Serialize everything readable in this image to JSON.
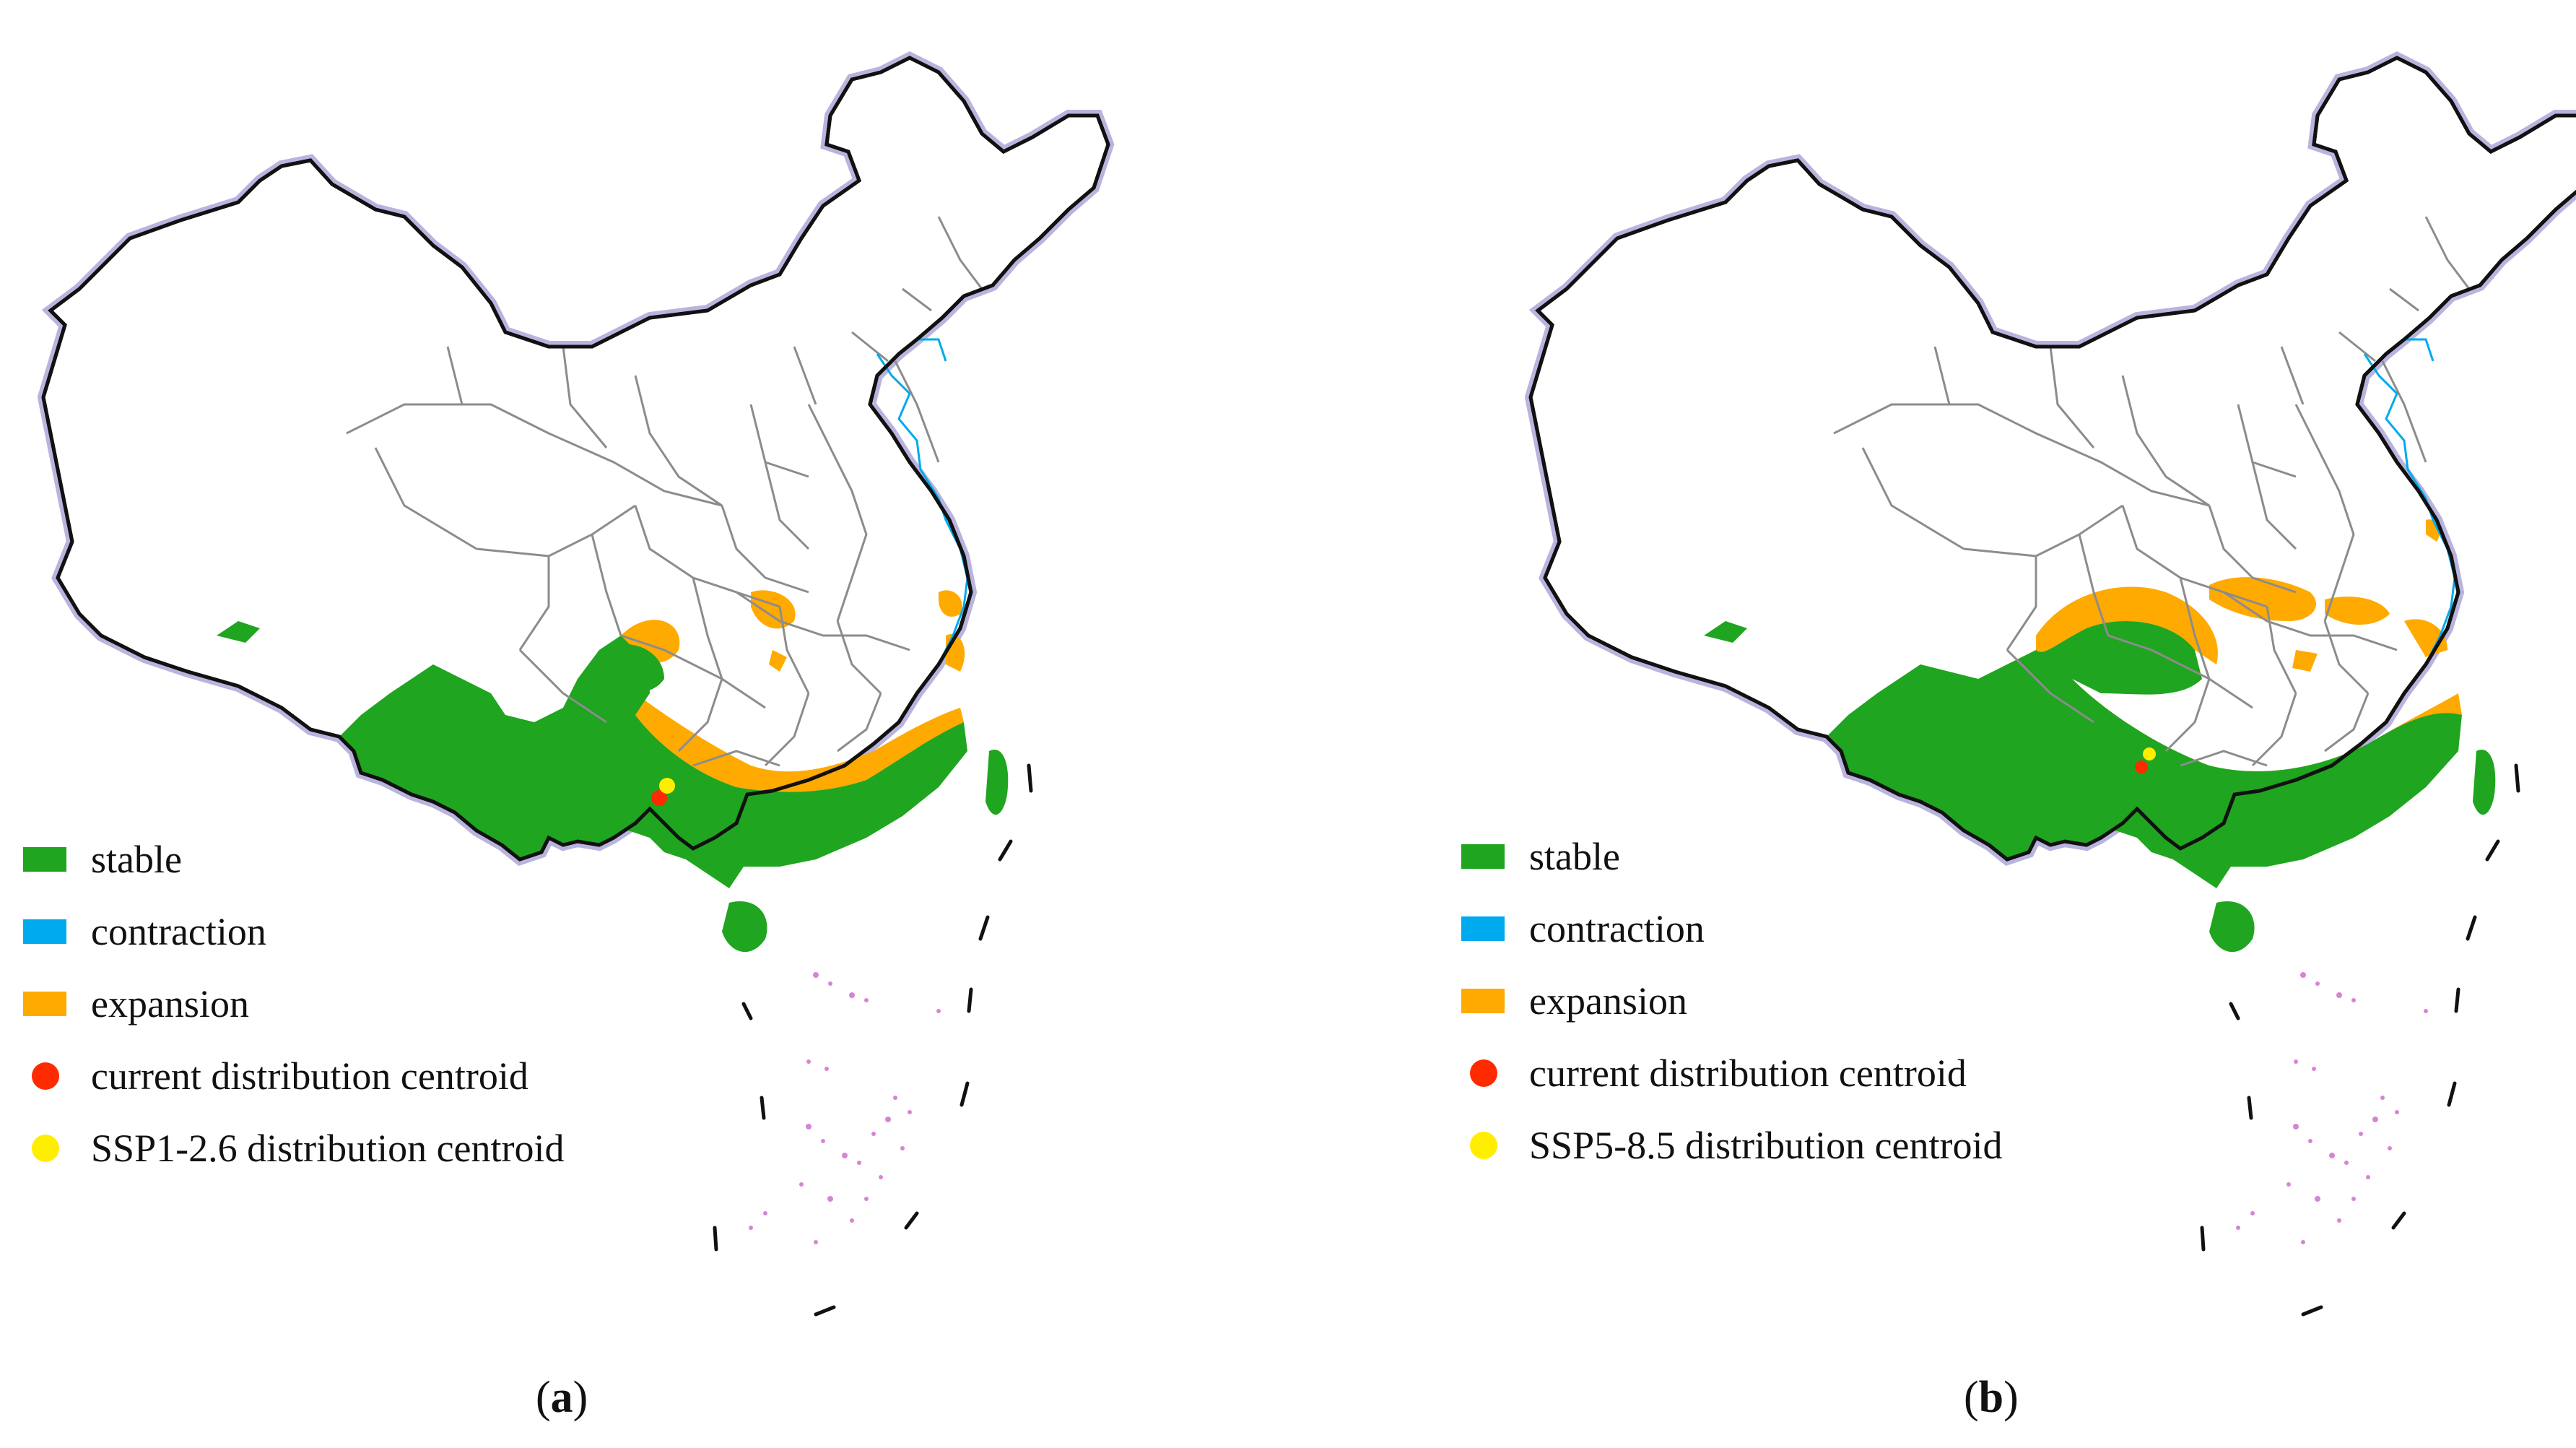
{
  "colors": {
    "stable": "#1fa51f",
    "contraction": "#00aaee",
    "expansion": "#ffaa00",
    "current_centroid": "#ff2a00",
    "future_centroid": "#ffee00",
    "province_border": "#8c8c8c",
    "country_border": "#111111",
    "border_halo": "#b9b4de",
    "islands": "#cc66cc"
  },
  "legend_icons": {
    "stable": "swatch-square",
    "contraction": "swatch-square",
    "expansion": "swatch-square",
    "current_centroid": "filled-circle",
    "future_centroid": "filled-circle"
  },
  "panels": [
    {
      "caption_open": "(",
      "caption_letter": "a",
      "caption_close": ")",
      "legend": {
        "stable": "stable",
        "contraction": "contraction",
        "expansion": "expansion",
        "current_centroid": "current distribution centroid",
        "future_centroid": "SSP1-2.6 distribution centroid"
      }
    },
    {
      "caption_open": "(",
      "caption_letter": "b",
      "caption_close": ")",
      "legend": {
        "stable": "stable",
        "contraction": "contraction",
        "expansion": "expansion",
        "current_centroid": "current distribution centroid",
        "future_centroid": "SSP5-8.5 distribution centroid"
      }
    }
  ]
}
